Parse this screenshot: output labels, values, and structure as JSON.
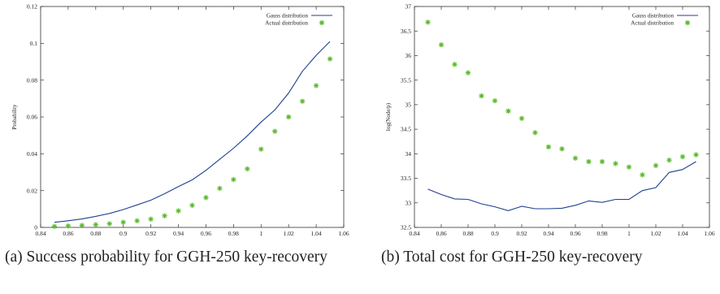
{
  "chart_data": [
    {
      "type": "line",
      "caption": "(a) Success probability for GGH-250 key-recovery",
      "ylabel": "Probability",
      "xlim": [
        0.84,
        1.06
      ],
      "ylim": [
        0,
        0.12
      ],
      "xticks": [
        "0.84",
        "0.86",
        "0.88",
        "0.9",
        "0.92",
        "0.94",
        "0.96",
        "0.98",
        "1",
        "1.02",
        "1.04",
        "1.06"
      ],
      "yticks": [
        "0",
        "0.02",
        "0.04",
        "0.06",
        "0.08",
        "0.1",
        "0.12"
      ],
      "legend": "top-right",
      "series": [
        {
          "name": "Gauss distribution",
          "style": "line",
          "color": "#1f3f8f",
          "x": [
            0.85,
            0.86,
            0.87,
            0.88,
            0.89,
            0.9,
            0.91,
            0.92,
            0.93,
            0.94,
            0.95,
            0.96,
            0.97,
            0.98,
            0.99,
            1.0,
            1.01,
            1.02,
            1.03,
            1.04,
            1.05
          ],
          "y": [
            0.0028,
            0.0036,
            0.0046,
            0.006,
            0.0076,
            0.0097,
            0.0122,
            0.0148,
            0.0183,
            0.0222,
            0.0258,
            0.031,
            0.037,
            0.043,
            0.0497,
            0.0572,
            0.0638,
            0.073,
            0.0848,
            0.0935,
            0.101
          ]
        },
        {
          "name": "Actual distribution",
          "style": "markers",
          "color": "#5ab82a",
          "x": [
            0.85,
            0.86,
            0.87,
            0.88,
            0.89,
            0.9,
            0.91,
            0.92,
            0.93,
            0.94,
            0.95,
            0.96,
            0.97,
            0.98,
            0.99,
            1.0,
            1.01,
            1.02,
            1.03,
            1.04,
            1.05
          ],
          "y": [
            0.0005,
            0.0008,
            0.0011,
            0.0015,
            0.002,
            0.0028,
            0.0036,
            0.0045,
            0.0063,
            0.009,
            0.012,
            0.0162,
            0.0212,
            0.026,
            0.0318,
            0.0425,
            0.0522,
            0.06,
            0.0685,
            0.077,
            0.0915
          ]
        }
      ]
    },
    {
      "type": "line",
      "caption": "(b) Total cost for GGH-250 key-recovery",
      "ylabel": "log(Node/p)",
      "xlim": [
        0.84,
        1.06
      ],
      "ylim": [
        32.5,
        37
      ],
      "xticks": [
        "0.84",
        "0.86",
        "0.88",
        "0.9",
        "0.92",
        "0.94",
        "0.96",
        "0.98",
        "1",
        "1.02",
        "1.04",
        "1.06"
      ],
      "yticks": [
        "32.5",
        "33",
        "33.5",
        "34",
        "34.5",
        "35",
        "35.5",
        "36",
        "36.5",
        "37"
      ],
      "legend": "top-right",
      "series": [
        {
          "name": "Gauss distribution",
          "style": "line",
          "color": "#1f3f8f",
          "x": [
            0.85,
            0.86,
            0.87,
            0.88,
            0.89,
            0.9,
            0.91,
            0.92,
            0.93,
            0.94,
            0.95,
            0.96,
            0.97,
            0.98,
            0.99,
            1.0,
            1.01,
            1.02,
            1.03,
            1.04,
            1.05
          ],
          "y": [
            33.28,
            33.17,
            33.08,
            33.07,
            32.98,
            32.92,
            32.84,
            32.93,
            32.88,
            32.88,
            32.89,
            32.95,
            33.04,
            33.01,
            33.07,
            33.07,
            33.25,
            33.31,
            33.62,
            33.68,
            33.84
          ]
        },
        {
          "name": "Actual distribution",
          "style": "markers",
          "color": "#5ab82a",
          "x": [
            0.85,
            0.86,
            0.87,
            0.88,
            0.89,
            0.9,
            0.91,
            0.92,
            0.93,
            0.94,
            0.95,
            0.96,
            0.97,
            0.98,
            0.99,
            1.0,
            1.01,
            1.02,
            1.03,
            1.04,
            1.05
          ],
          "y": [
            36.68,
            36.22,
            35.82,
            35.65,
            35.18,
            35.08,
            34.87,
            34.72,
            34.43,
            34.14,
            34.1,
            33.91,
            33.84,
            33.84,
            33.8,
            33.73,
            33.57,
            33.76,
            33.87,
            33.94,
            33.98
          ]
        }
      ]
    }
  ]
}
